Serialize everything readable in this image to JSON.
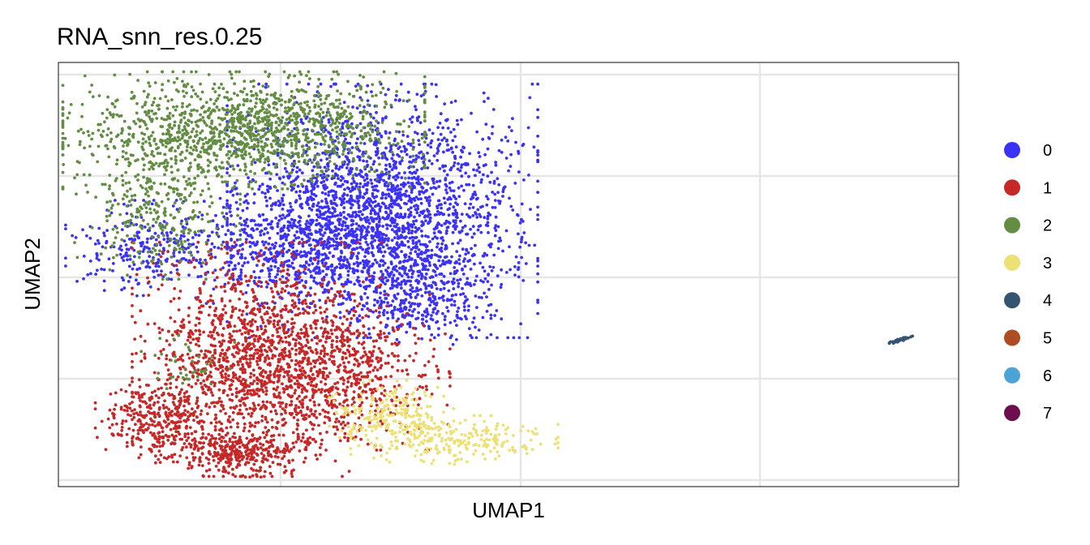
{
  "chart_data": {
    "type": "scatter",
    "title": "RNA_snn_res.0.25",
    "xlabel": "UMAP1",
    "ylabel": "UMAP2",
    "grid": true,
    "axis_ticks_shown": false,
    "legend_position": "right",
    "xlim": [
      0,
      100
    ],
    "ylim": [
      0,
      100
    ],
    "series": [
      {
        "name": "0",
        "color": "#3C32F5",
        "clusters": [
          {
            "cx": 36,
            "cy": 65,
            "sx": 7.5,
            "sy": 13,
            "n": 2200
          },
          {
            "cx": 27,
            "cy": 57,
            "sx": 6,
            "sy": 6,
            "n": 600
          },
          {
            "cx": 10,
            "cy": 56,
            "sx": 4,
            "sy": 5,
            "n": 260
          },
          {
            "cx": 40,
            "cy": 45,
            "sx": 3.5,
            "sy": 5,
            "n": 300
          }
        ]
      },
      {
        "name": "1",
        "color": "#C62828",
        "clusters": [
          {
            "cx": 22,
            "cy": 30,
            "sx": 6,
            "sy": 12,
            "n": 1500
          },
          {
            "cx": 11,
            "cy": 16,
            "sx": 3,
            "sy": 4,
            "n": 300
          },
          {
            "cx": 32,
            "cy": 27,
            "sx": 5,
            "sy": 8,
            "n": 500
          },
          {
            "cx": 20,
            "cy": 8,
            "sx": 4,
            "sy": 2.5,
            "n": 300
          }
        ]
      },
      {
        "name": "2",
        "color": "#628D43",
        "clusters": [
          {
            "cx": 20,
            "cy": 84,
            "sx": 9,
            "sy": 6,
            "n": 1400
          },
          {
            "cx": 11,
            "cy": 65,
            "sx": 4,
            "sy": 7,
            "n": 300
          },
          {
            "cx": 14,
            "cy": 30,
            "sx": 2.5,
            "sy": 3,
            "n": 40
          }
        ]
      },
      {
        "name": "3",
        "color": "#EDE075",
        "clusters": [
          {
            "cx": 37,
            "cy": 17,
            "sx": 3,
            "sy": 3.5,
            "n": 200
          },
          {
            "cx": 44,
            "cy": 11,
            "sx": 5,
            "sy": 2.5,
            "n": 250
          }
        ]
      },
      {
        "name": "4",
        "color": "#345571",
        "clusters": [
          {
            "cx": 93.4,
            "cy": 34.5,
            "sx": 0.7,
            "sy": 0.5,
            "n": 60
          }
        ]
      },
      {
        "name": "5",
        "color": "#AE4C24",
        "clusters": []
      },
      {
        "name": "6",
        "color": "#4BA3D6",
        "clusters": []
      },
      {
        "name": "7",
        "color": "#6D0F4F",
        "clusters": []
      }
    ]
  }
}
